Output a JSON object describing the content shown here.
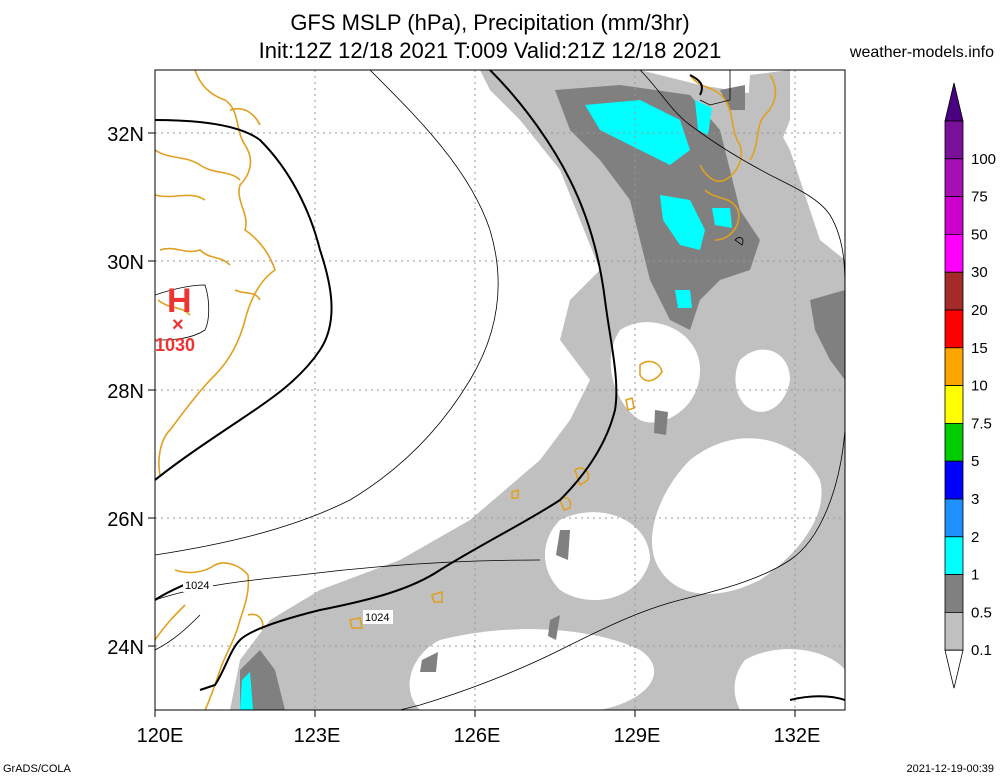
{
  "header": {
    "title_line1": "GFS MSLP (hPa), Precipitation (mm/3hr)",
    "title_line2": "Init:12Z 12/18 2021 T:009 Valid:21Z 12/18 2021",
    "site": "weather-models.info"
  },
  "map": {
    "lat_labels": [
      "32N",
      "30N",
      "28N",
      "26N",
      "24N"
    ],
    "lon_labels": [
      "120E",
      "123E",
      "126E",
      "129E",
      "132E"
    ],
    "high_pressure": {
      "symbol": "H",
      "marker": "×",
      "value": "1030"
    },
    "isobar_labels": [
      "1024",
      "1024"
    ],
    "colors": {
      "coastline": "#e0a020",
      "light_precip": "#c0c0c0",
      "mid_precip": "#808080",
      "heavy_precip": "#00ffff",
      "high_marker": "#ee3333"
    }
  },
  "colorbar": {
    "labels": [
      "100",
      "75",
      "50",
      "30",
      "20",
      "15",
      "10",
      "7.5",
      "5",
      "3",
      "2",
      "1",
      "0.5",
      "0.1"
    ],
    "colors": [
      "#7a0f9a",
      "#a70fb4",
      "#cc00cc",
      "#ff00ff",
      "#a52a2a",
      "#ff0000",
      "#ffa500",
      "#ffff00",
      "#00cc00",
      "#0000ff",
      "#1e90ff",
      "#00ffff",
      "#808080",
      "#c0c0c0"
    ],
    "top_color": "#4b0082"
  },
  "footer": {
    "left": "GrADS/COLA",
    "right": "2021-12-19-00:39"
  }
}
